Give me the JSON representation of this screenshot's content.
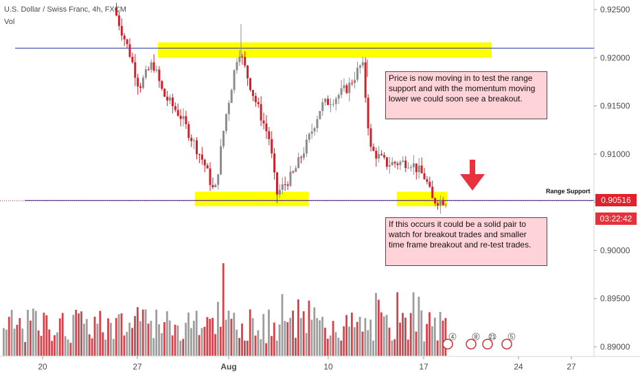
{
  "header": {
    "symbol": "U.S. Dollar / Swiss Franc, 4h, FXCM",
    "volume_label": "Vol"
  },
  "annotations": {
    "note_top": "Price is now moving in to test the range support and with the momentum moving lower we could soon see a breakout.",
    "note_bottom": "If this occurs it could be a solid pair to watch for breakout trades and smaller time frame breakout and re-test trades.",
    "support_label": "Range Support"
  },
  "price_axis": {
    "current_price": "0.90516",
    "countdown": "03:22:42"
  },
  "chart_data": {
    "type": "candlestick",
    "title": "U.S. Dollar / Swiss Franc, 4h, FXCM",
    "ylim": [
      0.8895,
      0.9255
    ],
    "y_ticks": [
      "0.92500",
      "0.92000",
      "0.91500",
      "0.91000",
      "0.90500",
      "0.90000",
      "0.89500",
      "0.89000"
    ],
    "x_ticks": [
      "20",
      "27",
      "Aug",
      "10",
      "17",
      "24",
      "27"
    ],
    "grid": false,
    "levels": [
      {
        "name": "resistance",
        "price": 0.921
      },
      {
        "name": "Range Support",
        "price": 0.9052
      }
    ],
    "last_price": 0.90516,
    "colors": {
      "up": "#8c8c8c",
      "down": "#d0202a",
      "highlight": "#ffff00",
      "level_line": "#1f2aa8",
      "arrow": "#e8323c"
    },
    "event_badges": [
      "4",
      "8",
      "21",
      "5"
    ]
  }
}
